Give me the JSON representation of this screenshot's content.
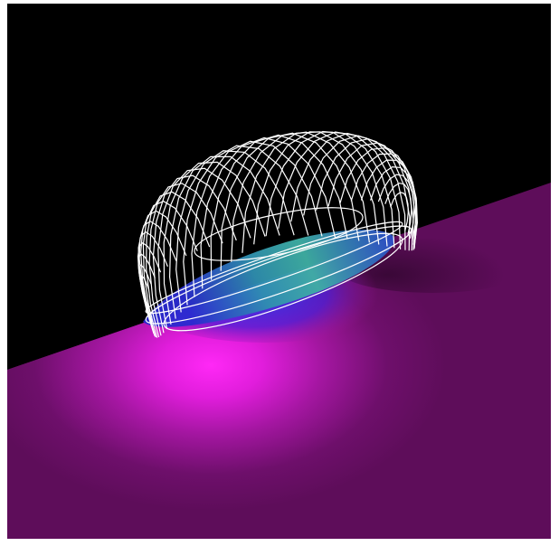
{
  "scene": {
    "description_kind": "3D visualization render",
    "background_color": "#000000",
    "frame_color": "#ffffff",
    "surface_colors": {
      "plane_base": "#5e0d5a",
      "plane_highlight": "#ff1ff4",
      "disk_inner": "#3aa8a0",
      "disk_edge": "#2626d8"
    },
    "wireframe": {
      "color": "#ffffff",
      "loop_count": 36
    }
  }
}
